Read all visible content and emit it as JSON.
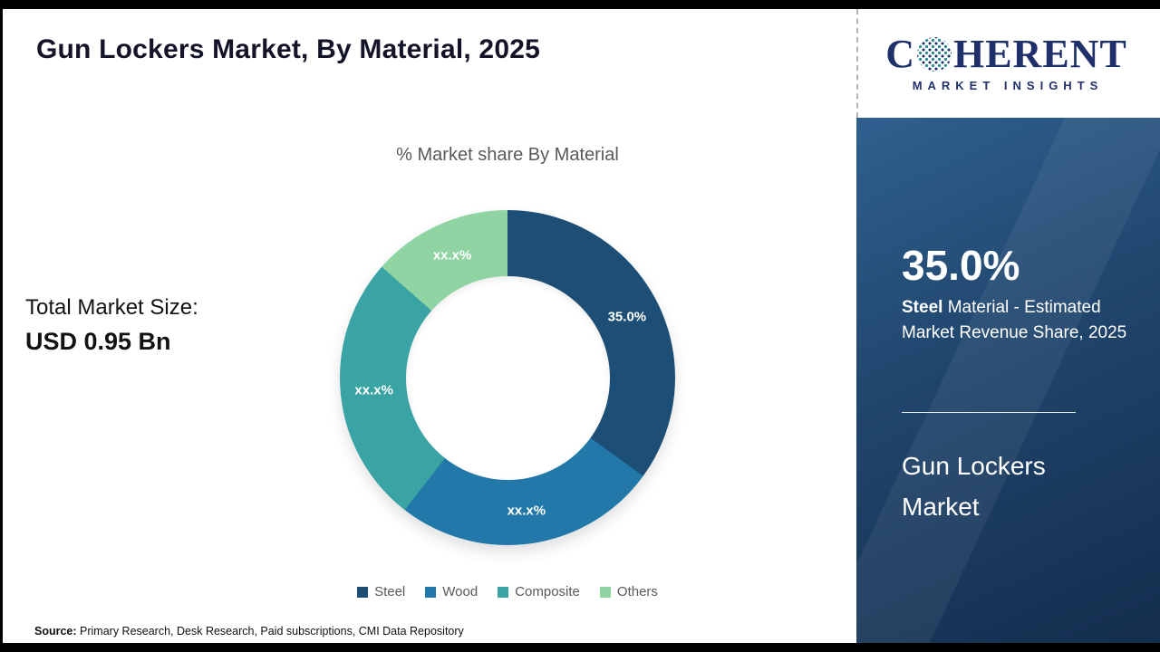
{
  "page": {
    "title": "Gun Lockers Market, By Material, 2025",
    "source_label": "Source:",
    "source_text": " Primary Research, Desk Research, Paid subscriptions, CMI Data Repository"
  },
  "stats": {
    "total_label": "Total Market Size:",
    "total_value": "USD 0.95 Bn"
  },
  "chart_data": {
    "type": "pie",
    "donut": true,
    "title": "% Market share By Material",
    "categories": [
      "Steel",
      "Wood",
      "Composite",
      "Others"
    ],
    "values": [
      35,
      25.5,
      26,
      13.5
    ],
    "slice_labels": [
      "35.0%",
      "xx.x%",
      "xx.x%",
      "xx.x%"
    ],
    "colors": [
      "#1d4f76",
      "#2278a8",
      "#3aa3a3",
      "#8fd4a2"
    ],
    "legend_position": "bottom"
  },
  "sidebar": {
    "logo": {
      "part1": "C",
      "part2": "HERENT",
      "subtitle": "MARKET INSIGHTS"
    },
    "highlight_value": "35.0%",
    "highlight_bold": "Steel",
    "highlight_rest": " Material - Estimated Market Revenue Share, 2025",
    "panel_title": "Gun Lockers Market"
  }
}
